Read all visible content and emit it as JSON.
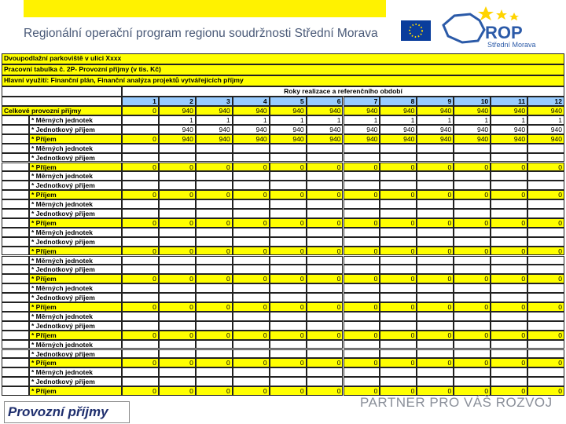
{
  "header": {
    "title": "Regionální operační program regionu soudržnosti Střední Morava",
    "logo_text": "ROP",
    "logo_subtext": "Střední Morava"
  },
  "sheet": {
    "title_rows": [
      "Dvoupodlažní parkoviště v ulici Xxxx",
      "Pracovní tabulka č. 2P- Provozní příjmy (v tis. Kč)",
      "Hlavní využití: Finanční plán, Finanční analýza projektů vytvářejících příjmy"
    ],
    "period_header": "Roky realizace a referenčního období",
    "years": [
      1,
      2,
      3,
      4,
      5,
      6,
      7,
      8,
      9,
      10,
      11,
      12
    ],
    "total": {
      "label": "Celkové provozní příjmy",
      "values": [
        0,
        940,
        940,
        940,
        940,
        940,
        940,
        940,
        940,
        940,
        940,
        940
      ]
    },
    "groups": [
      {
        "units": {
          "label": "* Měrných jednotek",
          "values": [
            null,
            1,
            1,
            1,
            1,
            1,
            1,
            1,
            1,
            1,
            1,
            1
          ]
        },
        "unit_income": {
          "label": "* Jednotkový příjem",
          "values": [
            null,
            940,
            940,
            940,
            940,
            940,
            940,
            940,
            940,
            940,
            940,
            940
          ]
        },
        "income": {
          "label": "* Příjem",
          "values": [
            0,
            940,
            940,
            940,
            940,
            940,
            940,
            940,
            940,
            940,
            940,
            940
          ]
        }
      },
      {
        "units": {
          "label": "* Měrných jednotek",
          "values": [
            null,
            null,
            null,
            null,
            null,
            null,
            null,
            null,
            null,
            null,
            null,
            null
          ]
        },
        "unit_income": {
          "label": "* Jednotkový příjem",
          "values": [
            null,
            null,
            null,
            null,
            null,
            null,
            null,
            null,
            null,
            null,
            null,
            null
          ]
        },
        "income": {
          "label": "* Příjem",
          "values": [
            0,
            0,
            0,
            0,
            0,
            0,
            0,
            0,
            0,
            0,
            0,
            0
          ]
        }
      },
      {
        "units": {
          "label": "* Měrných jednotek",
          "values": [
            null,
            null,
            null,
            null,
            null,
            null,
            null,
            null,
            null,
            null,
            null,
            null
          ]
        },
        "unit_income": {
          "label": "* Jednotkový příjem",
          "values": [
            null,
            null,
            null,
            null,
            null,
            null,
            null,
            null,
            null,
            null,
            null,
            null
          ]
        },
        "income": {
          "label": "* Příjem",
          "values": [
            0,
            0,
            0,
            0,
            0,
            0,
            0,
            0,
            0,
            0,
            0,
            0
          ]
        }
      },
      {
        "units": {
          "label": "* Měrných jednotek",
          "values": [
            null,
            null,
            null,
            null,
            null,
            null,
            null,
            null,
            null,
            null,
            null,
            null
          ]
        },
        "unit_income": {
          "label": "* Jednotkový příjem",
          "values": [
            null,
            null,
            null,
            null,
            null,
            null,
            null,
            null,
            null,
            null,
            null,
            null
          ]
        },
        "income": {
          "label": "* Příjem",
          "values": [
            0,
            0,
            0,
            0,
            0,
            0,
            0,
            0,
            0,
            0,
            0,
            0
          ]
        }
      },
      {
        "units": {
          "label": "* Měrných jednotek",
          "values": [
            null,
            null,
            null,
            null,
            null,
            null,
            null,
            null,
            null,
            null,
            null,
            null
          ]
        },
        "unit_income": {
          "label": "* Jednotkový příjem",
          "values": [
            null,
            null,
            null,
            null,
            null,
            null,
            null,
            null,
            null,
            null,
            null,
            null
          ]
        },
        "income": {
          "label": "* Příjem",
          "values": [
            0,
            0,
            0,
            0,
            0,
            0,
            0,
            0,
            0,
            0,
            0,
            0
          ]
        }
      },
      {
        "units": {
          "label": "* Měrných jednotek",
          "values": [
            null,
            null,
            null,
            null,
            null,
            null,
            null,
            null,
            null,
            null,
            null,
            null
          ]
        },
        "unit_income": {
          "label": "* Jednotkový příjem",
          "values": [
            null,
            null,
            null,
            null,
            null,
            null,
            null,
            null,
            null,
            null,
            null,
            null
          ]
        },
        "income": {
          "label": "* Příjem",
          "values": [
            0,
            0,
            0,
            0,
            0,
            0,
            0,
            0,
            0,
            0,
            0,
            0
          ]
        }
      },
      {
        "units": {
          "label": "* Měrných jednotek",
          "values": [
            null,
            null,
            null,
            null,
            null,
            null,
            null,
            null,
            null,
            null,
            null,
            null
          ]
        },
        "unit_income": {
          "label": "* Jednotkový příjem",
          "values": [
            null,
            null,
            null,
            null,
            null,
            null,
            null,
            null,
            null,
            null,
            null,
            null
          ]
        },
        "income": {
          "label": "* Příjem",
          "values": [
            0,
            0,
            0,
            0,
            0,
            0,
            0,
            0,
            0,
            0,
            0,
            0
          ]
        }
      },
      {
        "units": {
          "label": "* Měrných jednotek",
          "values": [
            null,
            null,
            null,
            null,
            null,
            null,
            null,
            null,
            null,
            null,
            null,
            null
          ]
        },
        "unit_income": {
          "label": "* Jednotkový příjem",
          "values": [
            null,
            null,
            null,
            null,
            null,
            null,
            null,
            null,
            null,
            null,
            null,
            null
          ]
        },
        "income": {
          "label": "* Příjem",
          "values": [
            0,
            0,
            0,
            0,
            0,
            0,
            0,
            0,
            0,
            0,
            0,
            0
          ]
        }
      },
      {
        "units": {
          "label": "* Měrných jednotek",
          "values": [
            null,
            null,
            null,
            null,
            null,
            null,
            null,
            null,
            null,
            null,
            null,
            null
          ]
        },
        "unit_income": {
          "label": "* Jednotkový příjem",
          "values": [
            null,
            null,
            null,
            null,
            null,
            null,
            null,
            null,
            null,
            null,
            null,
            null
          ]
        },
        "income": {
          "label": "* Příjem",
          "values": [
            0,
            0,
            0,
            0,
            0,
            0,
            0,
            0,
            0,
            0,
            0,
            0
          ]
        }
      },
      {
        "units": {
          "label": "* Měrných jednotek",
          "values": [
            null,
            null,
            null,
            null,
            null,
            null,
            null,
            null,
            null,
            null,
            null,
            null
          ]
        },
        "unit_income": {
          "label": "* Jednotkový příjem",
          "values": [
            null,
            null,
            null,
            null,
            null,
            null,
            null,
            null,
            null,
            null,
            null,
            null
          ]
        },
        "income": {
          "label": "* Příjem",
          "values": [
            0,
            0,
            0,
            0,
            0,
            0,
            0,
            0,
            0,
            0,
            0,
            0
          ]
        }
      }
    ]
  },
  "footer": {
    "slide_title": "Provozní příjmy",
    "slogan": "PARTNER PRO VÁŠ ROZVOJ"
  }
}
